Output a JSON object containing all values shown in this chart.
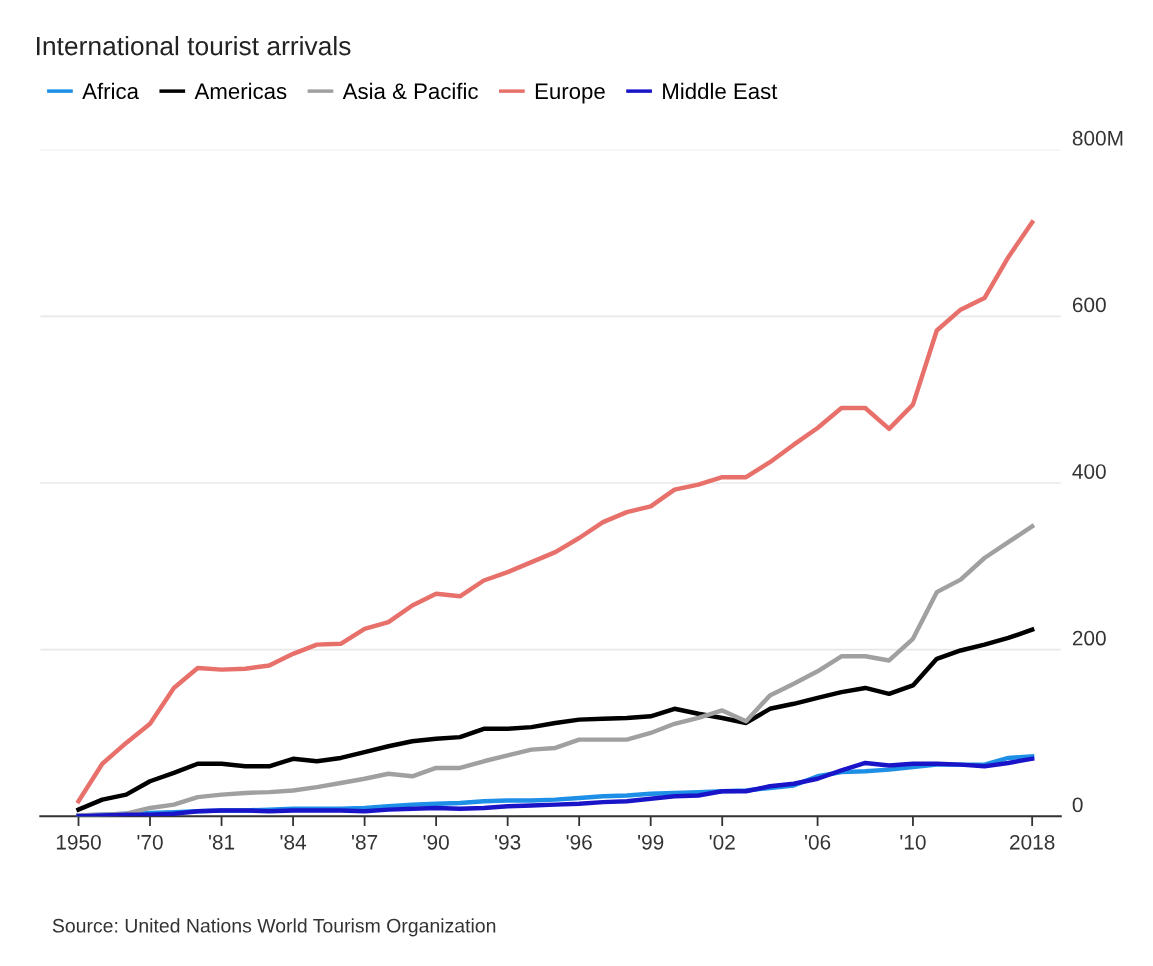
{
  "chart_data": {
    "type": "line",
    "title": "International tourist arrivals",
    "categories": [
      "1950",
      null,
      null,
      "'70",
      null,
      null,
      "'81",
      null,
      null,
      "'84",
      null,
      null,
      "'87",
      null,
      null,
      "'90",
      null,
      null,
      "'93",
      null,
      null,
      "'96",
      null,
      null,
      "'99",
      null,
      null,
      "'02",
      null,
      null,
      null,
      "'06",
      null,
      null,
      null,
      "'10",
      null,
      null,
      null,
      null,
      "2018"
    ],
    "series": [
      {
        "name": "Africa",
        "color": "#1e8fe6",
        "values": [
          1,
          2,
          3,
          4,
          5,
          6,
          7,
          7,
          8,
          9,
          9,
          9,
          10,
          12,
          14,
          15,
          16,
          18,
          19,
          19,
          20,
          22,
          24,
          25,
          27,
          28,
          29,
          30,
          31,
          34,
          37,
          48,
          53,
          54,
          56,
          59,
          62,
          62,
          62,
          70,
          72
        ]
      },
      {
        "name": "Americas",
        "color": "#000000",
        "values": [
          8,
          20,
          26,
          42,
          52,
          63,
          63,
          60,
          60,
          69,
          66,
          70,
          77,
          84,
          90,
          93,
          95,
          105,
          105,
          107,
          112,
          116,
          117,
          118,
          120,
          129,
          123,
          118,
          112,
          129,
          135,
          142,
          149,
          154,
          147,
          157,
          189,
          199,
          206,
          214,
          224
        ]
      },
      {
        "name": "Asia & Pacific",
        "color": "#a0a0a0",
        "values": [
          1,
          2,
          3,
          10,
          14,
          23,
          26,
          28,
          29,
          31,
          35,
          40,
          45,
          51,
          48,
          58,
          58,
          66,
          73,
          80,
          82,
          92,
          92,
          92,
          100,
          111,
          118,
          127,
          114,
          145,
          159,
          174,
          192,
          192,
          187,
          213,
          269,
          284,
          310,
          329,
          348
        ]
      },
      {
        "name": "Europe",
        "color": "#e8706a",
        "values": [
          18,
          63,
          88,
          111,
          154,
          178,
          176,
          177,
          181,
          195,
          206,
          207,
          225,
          233,
          253,
          267,
          264,
          283,
          293,
          305,
          317,
          334,
          353,
          365,
          372,
          392,
          398,
          407,
          407,
          425,
          446,
          466,
          490,
          490,
          465,
          494,
          583,
          608,
          622,
          671,
          713
        ]
      },
      {
        "name": "Middle East",
        "color": "#1a14c8",
        "values": [
          0,
          1,
          2,
          2,
          3,
          6,
          7,
          7,
          6,
          7,
          7,
          7,
          6,
          8,
          9,
          10,
          9,
          10,
          12,
          13,
          14,
          15,
          17,
          18,
          21,
          24,
          25,
          30,
          30,
          36,
          39,
          45,
          55,
          64,
          61,
          63,
          63,
          62,
          60,
          64,
          69
        ]
      }
    ],
    "ylim": [
      0,
      800
    ],
    "yticks": [
      0,
      200,
      400,
      600,
      {
        "value": 800,
        "label": "800M"
      }
    ],
    "grid": "y",
    "legend": "top left",
    "marker": "none",
    "line_style": "solid",
    "annotations": [
      "Source: United Nations World Tourism Organization"
    ]
  }
}
